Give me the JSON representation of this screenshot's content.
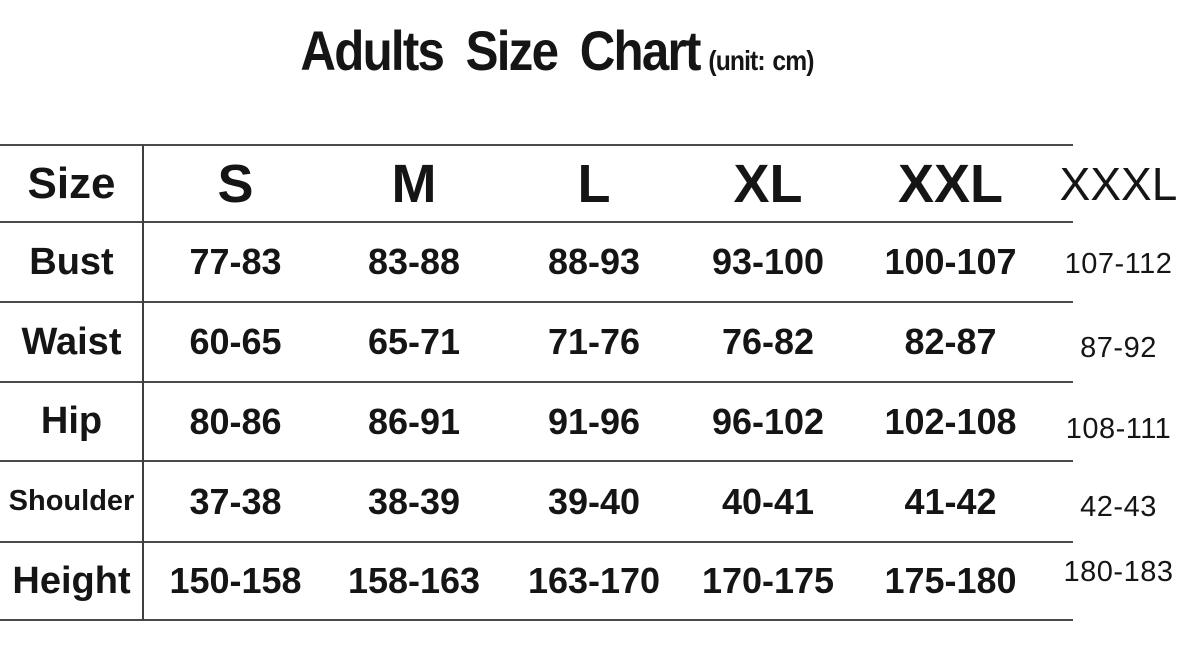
{
  "title": {
    "main": "Adults Size Chart",
    "unit": "(unit: cm)"
  },
  "table": {
    "corner_label": "Size",
    "columns": [
      "S",
      "M",
      "L",
      "XL",
      "XXL",
      "XXXL"
    ],
    "rows": [
      {
        "label": "Bust",
        "values": [
          "77-83",
          "83-88",
          "88-93",
          "93-100",
          "100-107",
          "107-112"
        ]
      },
      {
        "label": "Waist",
        "values": [
          "60-65",
          "65-71",
          "71-76",
          "76-82",
          "82-87",
          "87-92"
        ]
      },
      {
        "label": "Hip",
        "values": [
          "80-86",
          "86-91",
          "91-96",
          "96-102",
          "102-108",
          "108-111"
        ]
      },
      {
        "label": "Shoulder",
        "values": [
          "37-38",
          "38-39",
          "39-40",
          "40-41",
          "41-42",
          "42-43"
        ]
      },
      {
        "label": "Height",
        "values": [
          "150-158",
          "158-163",
          "163-170",
          "170-175",
          "175-180",
          "180-183"
        ]
      }
    ]
  }
}
